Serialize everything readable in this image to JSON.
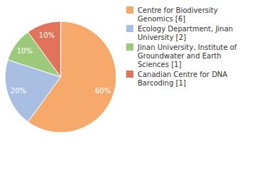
{
  "chart_data": {
    "type": "pie",
    "categories": [
      "Centre for Biodiversity Genomics [6]",
      "Ecology Department, Jinan University [2]",
      "Jinan University, Institute of Groundwater and Earth Sciences [1]",
      "Canadian Centre for DNA Barcoding [1]"
    ],
    "values": [
      60,
      20,
      10,
      10
    ],
    "value_labels": [
      "60%",
      "20%",
      "10%",
      "10%"
    ],
    "colors": [
      "#f6a96b",
      "#a8bfe2",
      "#9dc97a",
      "#e0735a"
    ],
    "data_labels": true,
    "legend": "top-right"
  }
}
